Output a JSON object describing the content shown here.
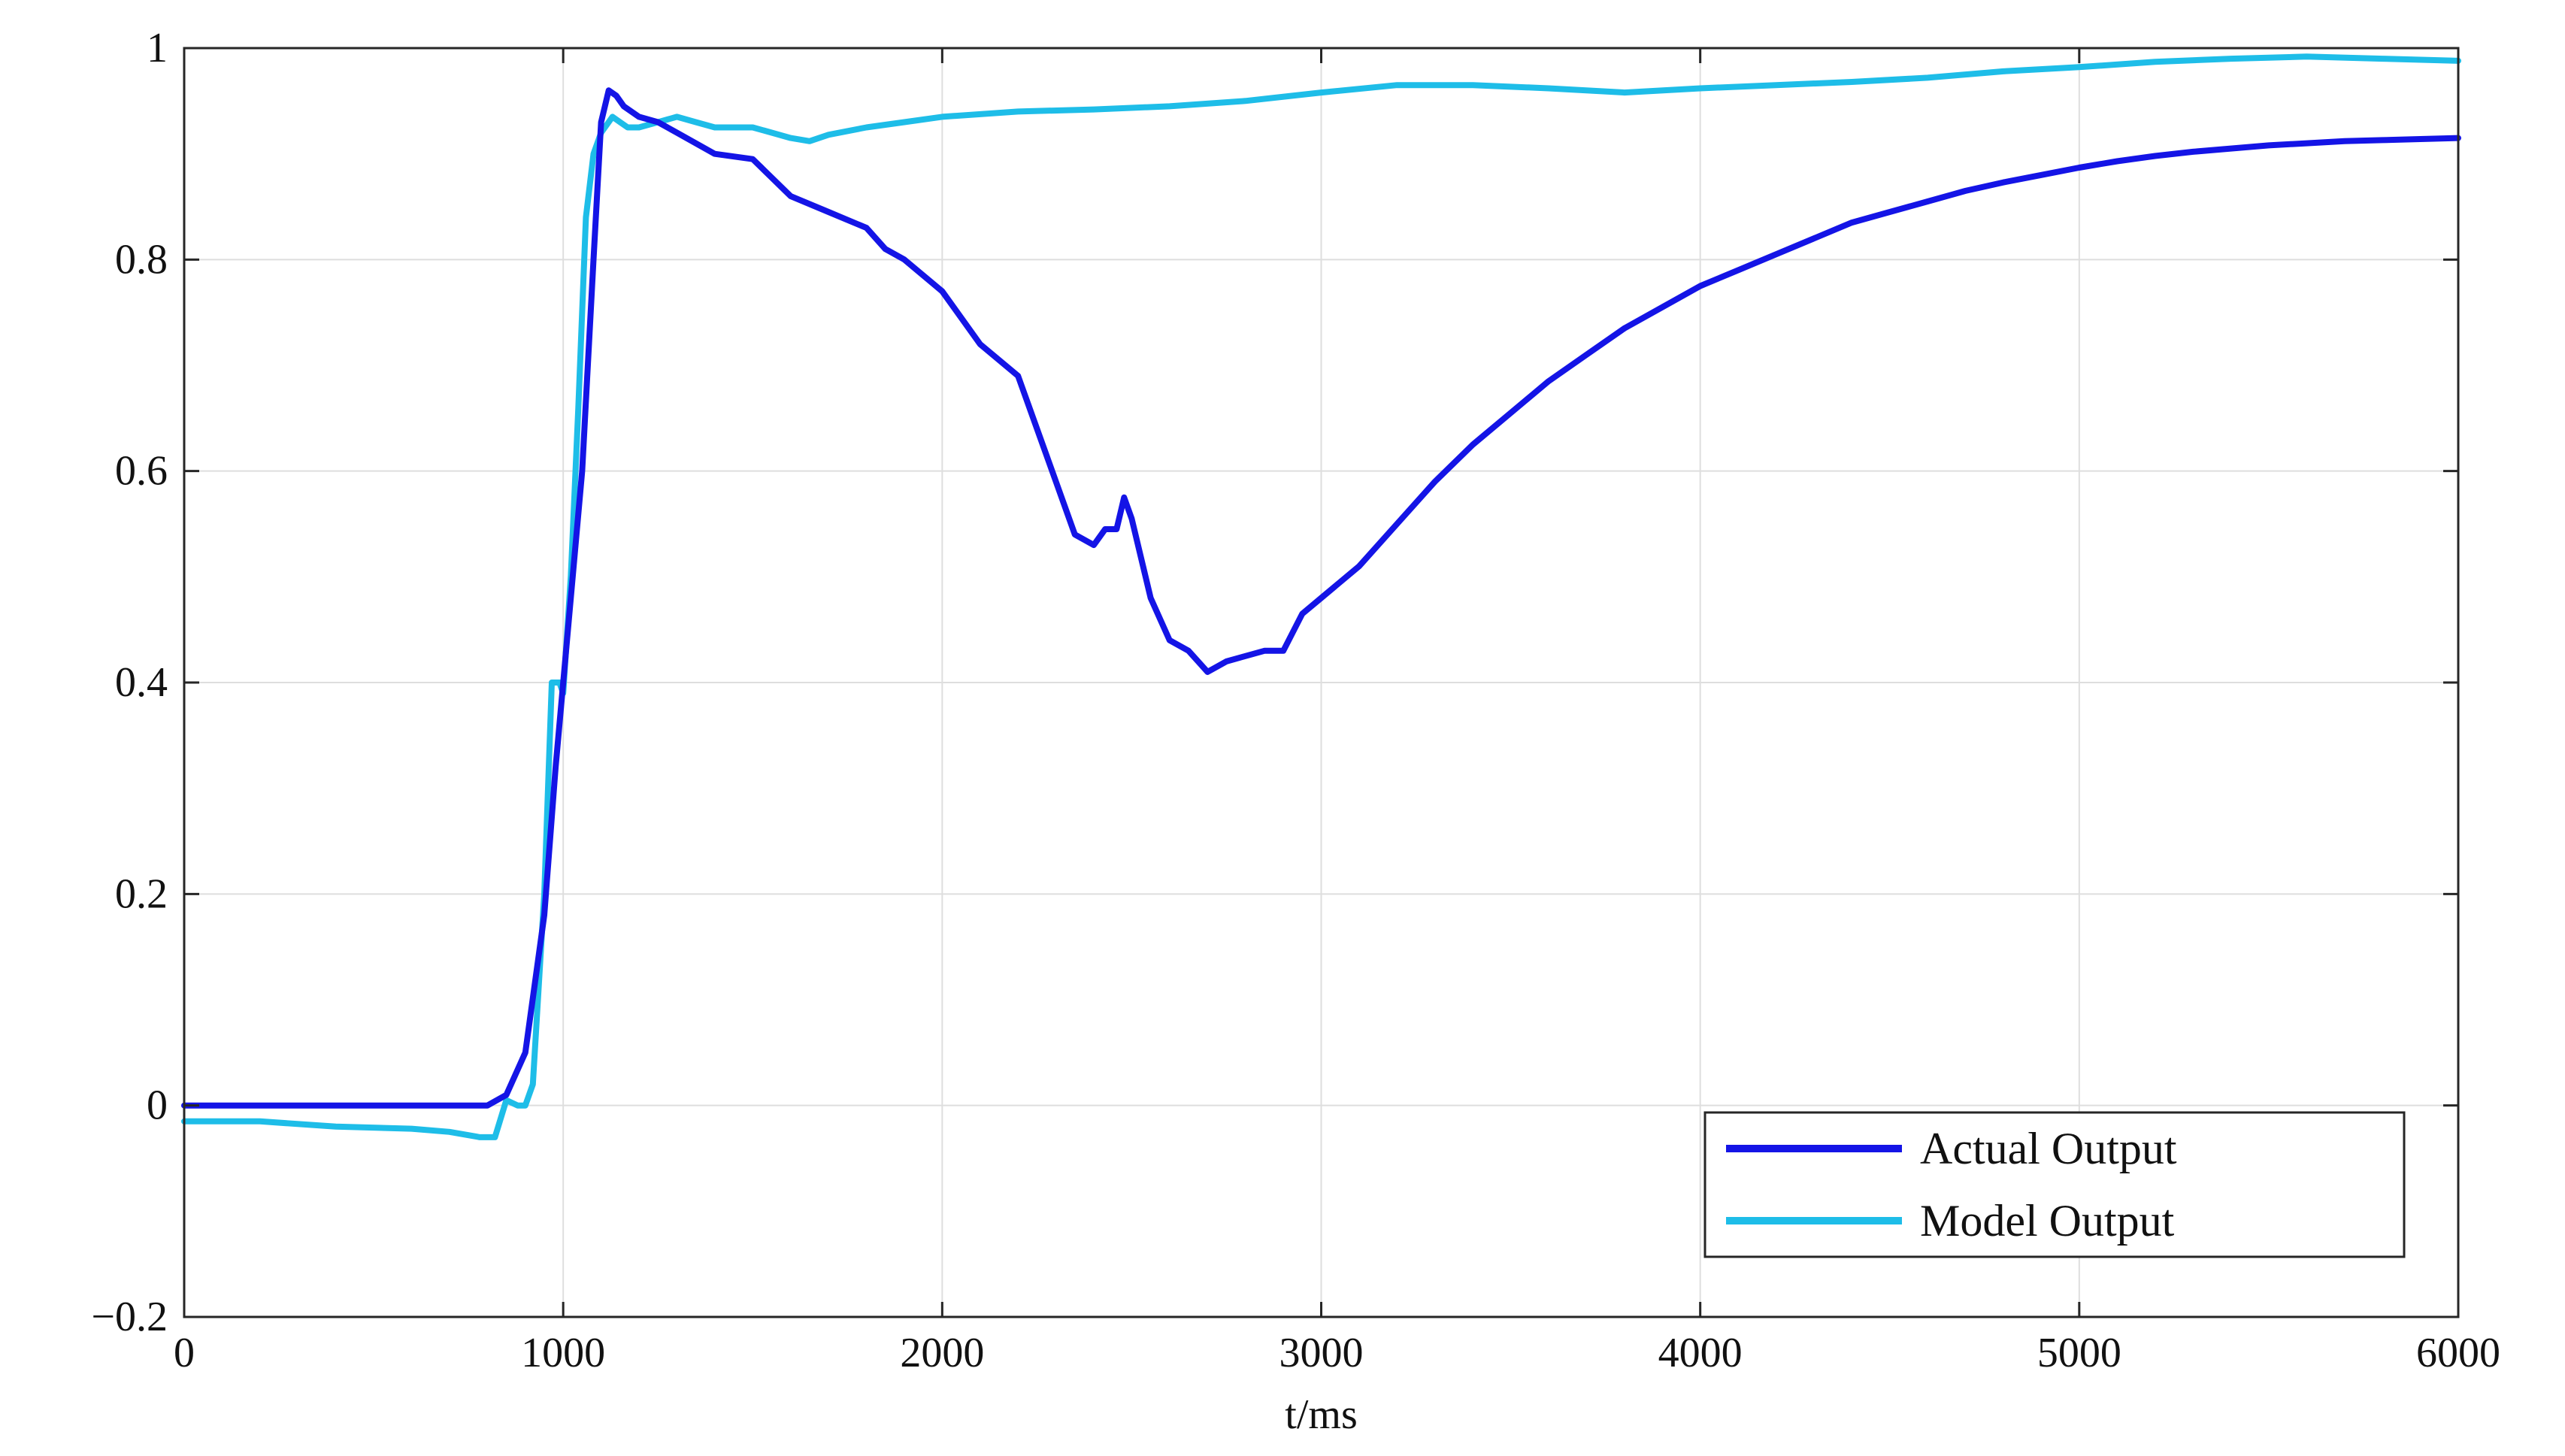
{
  "chart_data": {
    "type": "line",
    "title": "",
    "xlabel": "t/ms",
    "ylabel": "",
    "xlim": [
      0,
      6000
    ],
    "ylim": [
      -0.2,
      1
    ],
    "x_ticks": [
      0,
      1000,
      2000,
      3000,
      4000,
      5000,
      6000
    ],
    "x_tick_labels": [
      "0",
      "1000",
      "2000",
      "3000",
      "4000",
      "5000",
      "6000"
    ],
    "y_ticks": [
      -0.2,
      0,
      0.2,
      0.4,
      0.6,
      0.8,
      1
    ],
    "y_tick_labels": [
      "−0.2",
      "0",
      "0.2",
      "0.4",
      "0.6",
      "0.8",
      "1"
    ],
    "grid": true,
    "legend_position": "bottom-right",
    "series": [
      {
        "name": "Actual Output",
        "color": "#1414e6",
        "x": [
          0,
          200,
          400,
          600,
          800,
          850,
          900,
          950,
          980,
          1000,
          1050,
          1080,
          1100,
          1120,
          1140,
          1160,
          1200,
          1250,
          1300,
          1400,
          1500,
          1600,
          1700,
          1800,
          1850,
          1900,
          2000,
          2100,
          2200,
          2250,
          2300,
          2350,
          2400,
          2430,
          2460,
          2480,
          2500,
          2550,
          2600,
          2650,
          2700,
          2750,
          2800,
          2850,
          2900,
          2950,
          3000,
          3100,
          3200,
          3300,
          3400,
          3500,
          3600,
          3700,
          3800,
          3900,
          4000,
          4100,
          4200,
          4300,
          4400,
          4500,
          4600,
          4700,
          4800,
          4900,
          5000,
          5100,
          5200,
          5300,
          5400,
          5500,
          5600,
          5700,
          5800,
          5900,
          6000
        ],
        "y": [
          0,
          0,
          0,
          0,
          0,
          0.01,
          0.05,
          0.18,
          0.32,
          0.4,
          0.6,
          0.8,
          0.93,
          0.96,
          0.955,
          0.945,
          0.935,
          0.93,
          0.92,
          0.9,
          0.895,
          0.86,
          0.845,
          0.83,
          0.81,
          0.8,
          0.77,
          0.72,
          0.69,
          0.64,
          0.59,
          0.54,
          0.53,
          0.545,
          0.545,
          0.575,
          0.555,
          0.48,
          0.44,
          0.43,
          0.41,
          0.42,
          0.425,
          0.43,
          0.43,
          0.465,
          0.48,
          0.51,
          0.55,
          0.59,
          0.625,
          0.655,
          0.685,
          0.71,
          0.735,
          0.755,
          0.775,
          0.79,
          0.805,
          0.82,
          0.835,
          0.845,
          0.855,
          0.865,
          0.873,
          0.88,
          0.887,
          0.893,
          0.898,
          0.902,
          0.905,
          0.908,
          0.91,
          0.912,
          0.913,
          0.914,
          0.915
        ]
      },
      {
        "name": "Model Output",
        "color": "#1ebde8",
        "x": [
          0,
          200,
          400,
          600,
          700,
          780,
          820,
          850,
          880,
          900,
          920,
          950,
          970,
          990,
          1000,
          1020,
          1040,
          1060,
          1080,
          1100,
          1130,
          1150,
          1170,
          1200,
          1250,
          1300,
          1350,
          1400,
          1450,
          1500,
          1550,
          1600,
          1650,
          1700,
          1800,
          1900,
          2000,
          2200,
          2400,
          2600,
          2800,
          3000,
          3200,
          3400,
          3600,
          3800,
          4000,
          4200,
          4400,
          4600,
          4800,
          5000,
          5200,
          5400,
          5600,
          5800,
          6000
        ],
        "y": [
          -0.015,
          -0.015,
          -0.02,
          -0.022,
          -0.025,
          -0.03,
          -0.03,
          0.005,
          0.0,
          0.0,
          0.02,
          0.2,
          0.4,
          0.4,
          0.39,
          0.5,
          0.66,
          0.84,
          0.9,
          0.92,
          0.935,
          0.93,
          0.925,
          0.925,
          0.93,
          0.935,
          0.93,
          0.925,
          0.925,
          0.925,
          0.92,
          0.915,
          0.912,
          0.918,
          0.925,
          0.93,
          0.935,
          0.94,
          0.942,
          0.945,
          0.95,
          0.958,
          0.965,
          0.965,
          0.962,
          0.958,
          0.962,
          0.965,
          0.968,
          0.972,
          0.978,
          0.982,
          0.987,
          0.99,
          0.992,
          0.99,
          0.988
        ]
      }
    ]
  }
}
